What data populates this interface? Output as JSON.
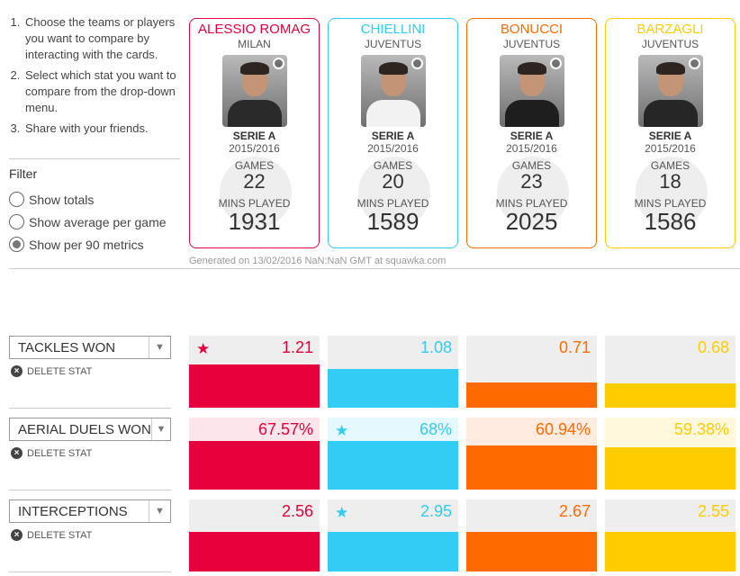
{
  "instructions": [
    "Choose the teams or players you want to compare by interacting with the cards.",
    "Select which stat you want to compare from the drop-down menu.",
    "Share with your friends."
  ],
  "filter": {
    "title": "Filter",
    "options": [
      "Show totals",
      "Show average per game",
      "Show per 90 metrics"
    ],
    "selected": "Show per 90 metrics"
  },
  "players": [
    {
      "name": "ALESSIO ROMAG",
      "club": "MILAN",
      "league": "SERIE A",
      "season": "2015/2016",
      "games_label": "GAMES",
      "games": "22",
      "mins_label": "MINS PLAYED",
      "mins": "1931",
      "color": "#e8003c",
      "shirt": "#2a2a2a"
    },
    {
      "name": "CHIELLINI",
      "club": "JUVENTUS",
      "league": "SERIE A",
      "season": "2015/2016",
      "games_label": "GAMES",
      "games": "20",
      "mins_label": "MINS PLAYED",
      "mins": "1589",
      "color": "#33ccf5",
      "shirt": "#f2f2f2"
    },
    {
      "name": "BONUCCI",
      "club": "JUVENTUS",
      "league": "SERIE A",
      "season": "2015/2016",
      "games_label": "GAMES",
      "games": "23",
      "mins_label": "MINS PLAYED",
      "mins": "2025",
      "color": "#ff6a00",
      "shirt": "#1e1e1e"
    },
    {
      "name": "BARZAGLI",
      "club": "JUVENTUS",
      "league": "SERIE A",
      "season": "2015/2016",
      "games_label": "GAMES",
      "games": "18",
      "mins_label": "MINS PLAYED",
      "mins": "1586",
      "color": "#ffcc00",
      "shirt": "#262626"
    }
  ],
  "generated": "Generated on 13/02/2016 NaN:NaN GMT at squawka.com",
  "delete_label": "DELETE STAT",
  "stats": [
    {
      "label": "TACKLES WON",
      "values": [
        "1.21",
        "1.08",
        "0.71",
        "0.68"
      ],
      "fills": [
        0.6,
        0.54,
        0.35,
        0.34
      ],
      "leader": 0
    },
    {
      "label": "AERIAL DUELS WON",
      "values": [
        "67.57%",
        "68%",
        "60.94%",
        "59.38%"
      ],
      "fills": [
        0.68,
        0.68,
        0.61,
        0.59
      ],
      "leader": 1
    },
    {
      "label": "INTERCEPTIONS",
      "values": [
        "2.56",
        "2.95",
        "2.67",
        "2.55"
      ],
      "fills": [
        0.55,
        0.55,
        0.55,
        0.55
      ],
      "leader": 1
    }
  ],
  "colors": {
    "lightbg": [
      "#fde5ec",
      "#e5f8fe",
      "#ffebe0",
      "#fff8dd"
    ],
    "greybg": "#eeeeee"
  },
  "star_icon": "star-icon"
}
